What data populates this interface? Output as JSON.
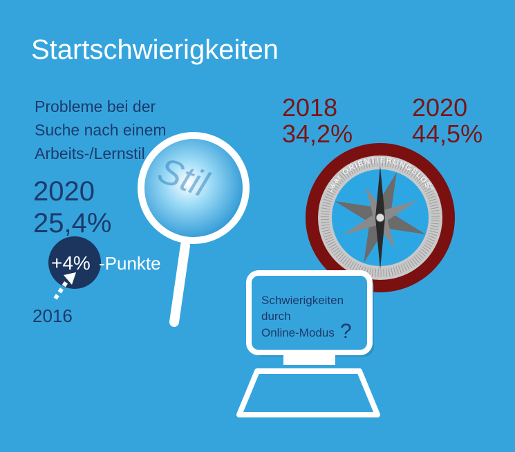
{
  "title": "Startschwierigkeiten",
  "left": {
    "heading_lines": [
      "Probleme bei der",
      "Suche nach einem",
      "Arbeits-/Lernstil"
    ],
    "year": "2020",
    "value": "25,4%",
    "change": "+4%",
    "change_suffix": "-Punkte",
    "base_year": "2016",
    "lens_text": "Stil"
  },
  "right": {
    "items": [
      {
        "year": "2018",
        "value": "34,2%"
      },
      {
        "year": "2020",
        "value": "44,5%"
      }
    ],
    "compass_label": "„war ORIENTIERUNGSLOS“"
  },
  "monitor": {
    "lines": [
      "Schwierigkeiten",
      "durch",
      "Online-Modus"
    ],
    "mark": "?"
  }
}
